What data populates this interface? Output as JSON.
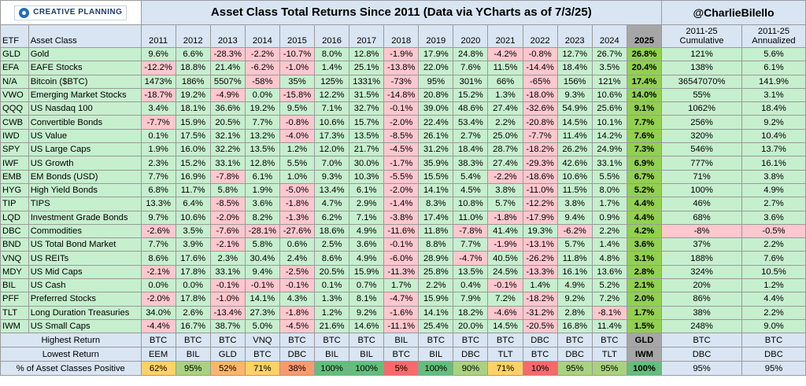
{
  "logo_text": "CREATIVE PLANNING",
  "handle": "@CharlieBilello",
  "colors": {
    "header_bg": "#d9e5f3",
    "positive": "#c6efce",
    "negative": "#ffc7ce",
    "highlight_2025": "#92d050"
  },
  "chart_data": {
    "type": "table",
    "title": "Asset Class Total Returns Since 2011 (Data via YCharts as of 7/3/25)",
    "col_etf": "ETF",
    "col_name": "Asset Class",
    "years": [
      "2011",
      "2012",
      "2013",
      "2014",
      "2015",
      "2016",
      "2017",
      "2018",
      "2019",
      "2020",
      "2021",
      "2022",
      "2023",
      "2024",
      "2025"
    ],
    "col_cum": "2011-25 Cumulative",
    "col_ann": "2011-25 Annualized",
    "rows": [
      {
        "etf": "GLD",
        "name": "Gold",
        "v": [
          "9.6%",
          "6.6%",
          "-28.3%",
          "-2.2%",
          "-10.7%",
          "8.0%",
          "12.8%",
          "-1.9%",
          "17.9%",
          "24.8%",
          "-4.2%",
          "-0.8%",
          "12.7%",
          "26.7%",
          "26.8%"
        ],
        "cum": "121%",
        "ann": "5.6%"
      },
      {
        "etf": "EFA",
        "name": "EAFE Stocks",
        "v": [
          "-12.2%",
          "18.8%",
          "21.4%",
          "-6.2%",
          "-1.0%",
          "1.4%",
          "25.1%",
          "-13.8%",
          "22.0%",
          "7.6%",
          "11.5%",
          "-14.4%",
          "18.4%",
          "3.5%",
          "20.4%"
        ],
        "cum": "138%",
        "ann": "6.1%"
      },
      {
        "etf": "N/A",
        "name": "Bitcoin ($BTC)",
        "v": [
          "1473%",
          "186%",
          "5507%",
          "-58%",
          "35%",
          "125%",
          "1331%",
          "-73%",
          "95%",
          "301%",
          "66%",
          "-65%",
          "156%",
          "121%",
          "17.4%"
        ],
        "cum": "36547070%",
        "ann": "141.9%"
      },
      {
        "etf": "VWO",
        "name": "Emerging Market Stocks",
        "v": [
          "-18.7%",
          "19.2%",
          "-4.9%",
          "0.0%",
          "-15.8%",
          "12.2%",
          "31.5%",
          "-14.8%",
          "20.8%",
          "15.2%",
          "1.3%",
          "-18.0%",
          "9.3%",
          "10.6%",
          "14.0%"
        ],
        "cum": "55%",
        "ann": "3.1%"
      },
      {
        "etf": "QQQ",
        "name": "US Nasdaq 100",
        "v": [
          "3.4%",
          "18.1%",
          "36.6%",
          "19.2%",
          "9.5%",
          "7.1%",
          "32.7%",
          "-0.1%",
          "39.0%",
          "48.6%",
          "27.4%",
          "-32.6%",
          "54.9%",
          "25.6%",
          "9.1%"
        ],
        "cum": "1062%",
        "ann": "18.4%"
      },
      {
        "etf": "CWB",
        "name": "Convertible Bonds",
        "v": [
          "-7.7%",
          "15.9%",
          "20.5%",
          "7.7%",
          "-0.8%",
          "10.6%",
          "15.7%",
          "-2.0%",
          "22.4%",
          "53.4%",
          "2.2%",
          "-20.8%",
          "14.5%",
          "10.1%",
          "7.7%"
        ],
        "cum": "256%",
        "ann": "9.2%"
      },
      {
        "etf": "IWD",
        "name": "US Value",
        "v": [
          "0.1%",
          "17.5%",
          "32.1%",
          "13.2%",
          "-4.0%",
          "17.3%",
          "13.5%",
          "-8.5%",
          "26.1%",
          "2.7%",
          "25.0%",
          "-7.7%",
          "11.4%",
          "14.2%",
          "7.6%"
        ],
        "cum": "320%",
        "ann": "10.4%"
      },
      {
        "etf": "SPY",
        "name": "US Large Caps",
        "v": [
          "1.9%",
          "16.0%",
          "32.2%",
          "13.5%",
          "1.2%",
          "12.0%",
          "21.7%",
          "-4.5%",
          "31.2%",
          "18.4%",
          "28.7%",
          "-18.2%",
          "26.2%",
          "24.9%",
          "7.3%"
        ],
        "cum": "546%",
        "ann": "13.7%"
      },
      {
        "etf": "IWF",
        "name": "US Growth",
        "v": [
          "2.3%",
          "15.2%",
          "33.1%",
          "12.8%",
          "5.5%",
          "7.0%",
          "30.0%",
          "-1.7%",
          "35.9%",
          "38.3%",
          "27.4%",
          "-29.3%",
          "42.6%",
          "33.1%",
          "6.9%"
        ],
        "cum": "777%",
        "ann": "16.1%"
      },
      {
        "etf": "EMB",
        "name": "EM Bonds (USD)",
        "v": [
          "7.7%",
          "16.9%",
          "-7.8%",
          "6.1%",
          "1.0%",
          "9.3%",
          "10.3%",
          "-5.5%",
          "15.5%",
          "5.4%",
          "-2.2%",
          "-18.6%",
          "10.6%",
          "5.5%",
          "6.7%"
        ],
        "cum": "71%",
        "ann": "3.8%"
      },
      {
        "etf": "HYG",
        "name": "High Yield Bonds",
        "v": [
          "6.8%",
          "11.7%",
          "5.8%",
          "1.9%",
          "-5.0%",
          "13.4%",
          "6.1%",
          "-2.0%",
          "14.1%",
          "4.5%",
          "3.8%",
          "-11.0%",
          "11.5%",
          "8.0%",
          "5.2%"
        ],
        "cum": "100%",
        "ann": "4.9%"
      },
      {
        "etf": "TIP",
        "name": "TIPS",
        "v": [
          "13.3%",
          "6.4%",
          "-8.5%",
          "3.6%",
          "-1.8%",
          "4.7%",
          "2.9%",
          "-1.4%",
          "8.3%",
          "10.8%",
          "5.7%",
          "-12.2%",
          "3.8%",
          "1.7%",
          "4.4%"
        ],
        "cum": "46%",
        "ann": "2.7%"
      },
      {
        "etf": "LQD",
        "name": "Investment Grade Bonds",
        "v": [
          "9.7%",
          "10.6%",
          "-2.0%",
          "8.2%",
          "-1.3%",
          "6.2%",
          "7.1%",
          "-3.8%",
          "17.4%",
          "11.0%",
          "-1.8%",
          "-17.9%",
          "9.4%",
          "0.9%",
          "4.4%"
        ],
        "cum": "68%",
        "ann": "3.6%"
      },
      {
        "etf": "DBC",
        "name": "Commodities",
        "v": [
          "-2.6%",
          "3.5%",
          "-7.6%",
          "-28.1%",
          "-27.6%",
          "18.6%",
          "4.9%",
          "-11.6%",
          "11.8%",
          "-7.8%",
          "41.4%",
          "19.3%",
          "-6.2%",
          "2.2%",
          "4.2%"
        ],
        "cum": "-8%",
        "ann": "-0.5%"
      },
      {
        "etf": "BND",
        "name": "US Total Bond Market",
        "v": [
          "7.7%",
          "3.9%",
          "-2.1%",
          "5.8%",
          "0.6%",
          "2.5%",
          "3.6%",
          "-0.1%",
          "8.8%",
          "7.7%",
          "-1.9%",
          "-13.1%",
          "5.7%",
          "1.4%",
          "3.6%"
        ],
        "cum": "37%",
        "ann": "2.2%"
      },
      {
        "etf": "VNQ",
        "name": "US REITs",
        "v": [
          "8.6%",
          "17.6%",
          "2.3%",
          "30.4%",
          "2.4%",
          "8.6%",
          "4.9%",
          "-6.0%",
          "28.9%",
          "-4.7%",
          "40.5%",
          "-26.2%",
          "11.8%",
          "4.8%",
          "3.1%"
        ],
        "cum": "188%",
        "ann": "7.6%"
      },
      {
        "etf": "MDY",
        "name": "US Mid Caps",
        "v": [
          "-2.1%",
          "17.8%",
          "33.1%",
          "9.4%",
          "-2.5%",
          "20.5%",
          "15.9%",
          "-11.3%",
          "25.8%",
          "13.5%",
          "24.5%",
          "-13.3%",
          "16.1%",
          "13.6%",
          "2.8%"
        ],
        "cum": "324%",
        "ann": "10.5%"
      },
      {
        "etf": "BIL",
        "name": "US Cash",
        "v": [
          "0.0%",
          "0.0%",
          "-0.1%",
          "-0.1%",
          "-0.1%",
          "0.1%",
          "0.7%",
          "1.7%",
          "2.2%",
          "0.4%",
          "-0.1%",
          "1.4%",
          "4.9%",
          "5.2%",
          "2.1%"
        ],
        "cum": "20%",
        "ann": "1.2%"
      },
      {
        "etf": "PFF",
        "name": "Preferred Stocks",
        "v": [
          "-2.0%",
          "17.8%",
          "-1.0%",
          "14.1%",
          "4.3%",
          "1.3%",
          "8.1%",
          "-4.7%",
          "15.9%",
          "7.9%",
          "7.2%",
          "-18.2%",
          "9.2%",
          "7.2%",
          "2.0%"
        ],
        "cum": "86%",
        "ann": "4.4%"
      },
      {
        "etf": "TLT",
        "name": "Long Duration Treasuries",
        "v": [
          "34.0%",
          "2.6%",
          "-13.4%",
          "27.3%",
          "-1.8%",
          "1.2%",
          "9.2%",
          "-1.6%",
          "14.1%",
          "18.2%",
          "-4.6%",
          "-31.2%",
          "2.8%",
          "-8.1%",
          "1.7%"
        ],
        "cum": "38%",
        "ann": "2.2%"
      },
      {
        "etf": "IWM",
        "name": "US Small Caps",
        "v": [
          "-4.4%",
          "16.7%",
          "38.7%",
          "5.0%",
          "-4.5%",
          "21.6%",
          "14.6%",
          "-11.1%",
          "25.4%",
          "20.0%",
          "14.5%",
          "-20.5%",
          "16.8%",
          "11.4%",
          "1.5%"
        ],
        "cum": "248%",
        "ann": "9.0%"
      }
    ],
    "highest": {
      "label": "Highest Return",
      "v": [
        "BTC",
        "BTC",
        "BTC",
        "VNQ",
        "BTC",
        "BTC",
        "BTC",
        "BIL",
        "BTC",
        "BTC",
        "BTC",
        "DBC",
        "BTC",
        "BTC",
        "GLD"
      ],
      "cum": "BTC",
      "ann": "BTC"
    },
    "lowest": {
      "label": "Lowest Return",
      "v": [
        "EEM",
        "BIL",
        "GLD",
        "BTC",
        "DBC",
        "BIL",
        "BIL",
        "BTC",
        "BIL",
        "DBC",
        "TLT",
        "BTC",
        "DBC",
        "TLT",
        "IWM"
      ],
      "cum": "DBC",
      "ann": "DBC"
    },
    "positive": {
      "label": "% of Asset Classes Positive",
      "v": [
        "62%",
        "95%",
        "52%",
        "71%",
        "38%",
        "100%",
        "100%",
        "5%",
        "100%",
        "90%",
        "71%",
        "10%",
        "95%",
        "95%",
        "100%"
      ],
      "cum": "95%",
      "ann": "95%"
    }
  }
}
